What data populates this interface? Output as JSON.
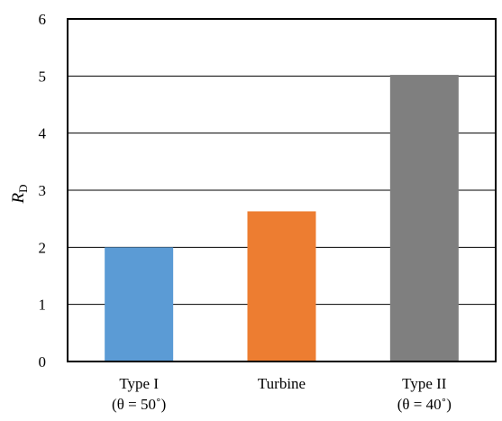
{
  "chart_data": {
    "type": "bar",
    "categories": [
      {
        "line1": "Type I",
        "line2": "(θ = 50˚)"
      },
      {
        "line1": "Turbine",
        "line2": ""
      },
      {
        "line1": "Type II",
        "line2": "(θ = 40˚)"
      }
    ],
    "values": [
      2.0,
      2.63,
      5.02
    ],
    "colors": [
      "#5b9bd5",
      "#ed7d31",
      "#7f7f7f"
    ],
    "title": "",
    "xlabel": "",
    "ylabel": {
      "main": "R",
      "sub": "D"
    },
    "ylim": [
      0,
      6
    ],
    "yticks": [
      0,
      1,
      2,
      3,
      4,
      5,
      6
    ],
    "grid": true
  }
}
